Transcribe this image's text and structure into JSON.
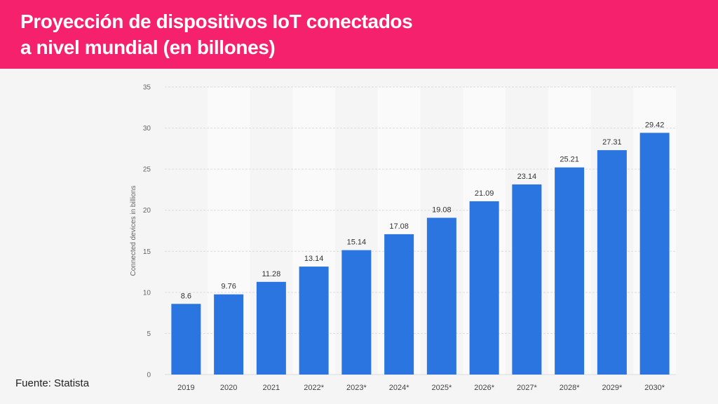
{
  "header": {
    "title_line1": "Proyección de dispositivos IoT conectados",
    "title_line2": "a nivel mundial (en billones)"
  },
  "source": "Fuente: Statista",
  "colors": {
    "header_bg": "#f5216d",
    "bar": "#2a75e0",
    "background": "#f5f5f5",
    "band": "#fafafa"
  },
  "chart_data": {
    "type": "bar",
    "categories": [
      "2019",
      "2020",
      "2021",
      "2022*",
      "2023*",
      "2024*",
      "2025*",
      "2026*",
      "2027*",
      "2028*",
      "2029*",
      "2030*"
    ],
    "values": [
      8.6,
      9.76,
      11.28,
      13.14,
      15.14,
      17.08,
      19.08,
      21.09,
      23.14,
      25.21,
      27.31,
      29.42
    ],
    "value_labels": [
      "8.6",
      "9.76",
      "11.28",
      "13.14",
      "15.14",
      "17.08",
      "19.08",
      "21.09",
      "23.14",
      "25.21",
      "27.31",
      "29.42"
    ],
    "ylabel": "Connected devices in billions",
    "xlabel": "",
    "ylim": [
      0,
      35
    ],
    "yticks": [
      0,
      5,
      10,
      15,
      20,
      25,
      30,
      35
    ],
    "grid": true,
    "legend": "none"
  }
}
